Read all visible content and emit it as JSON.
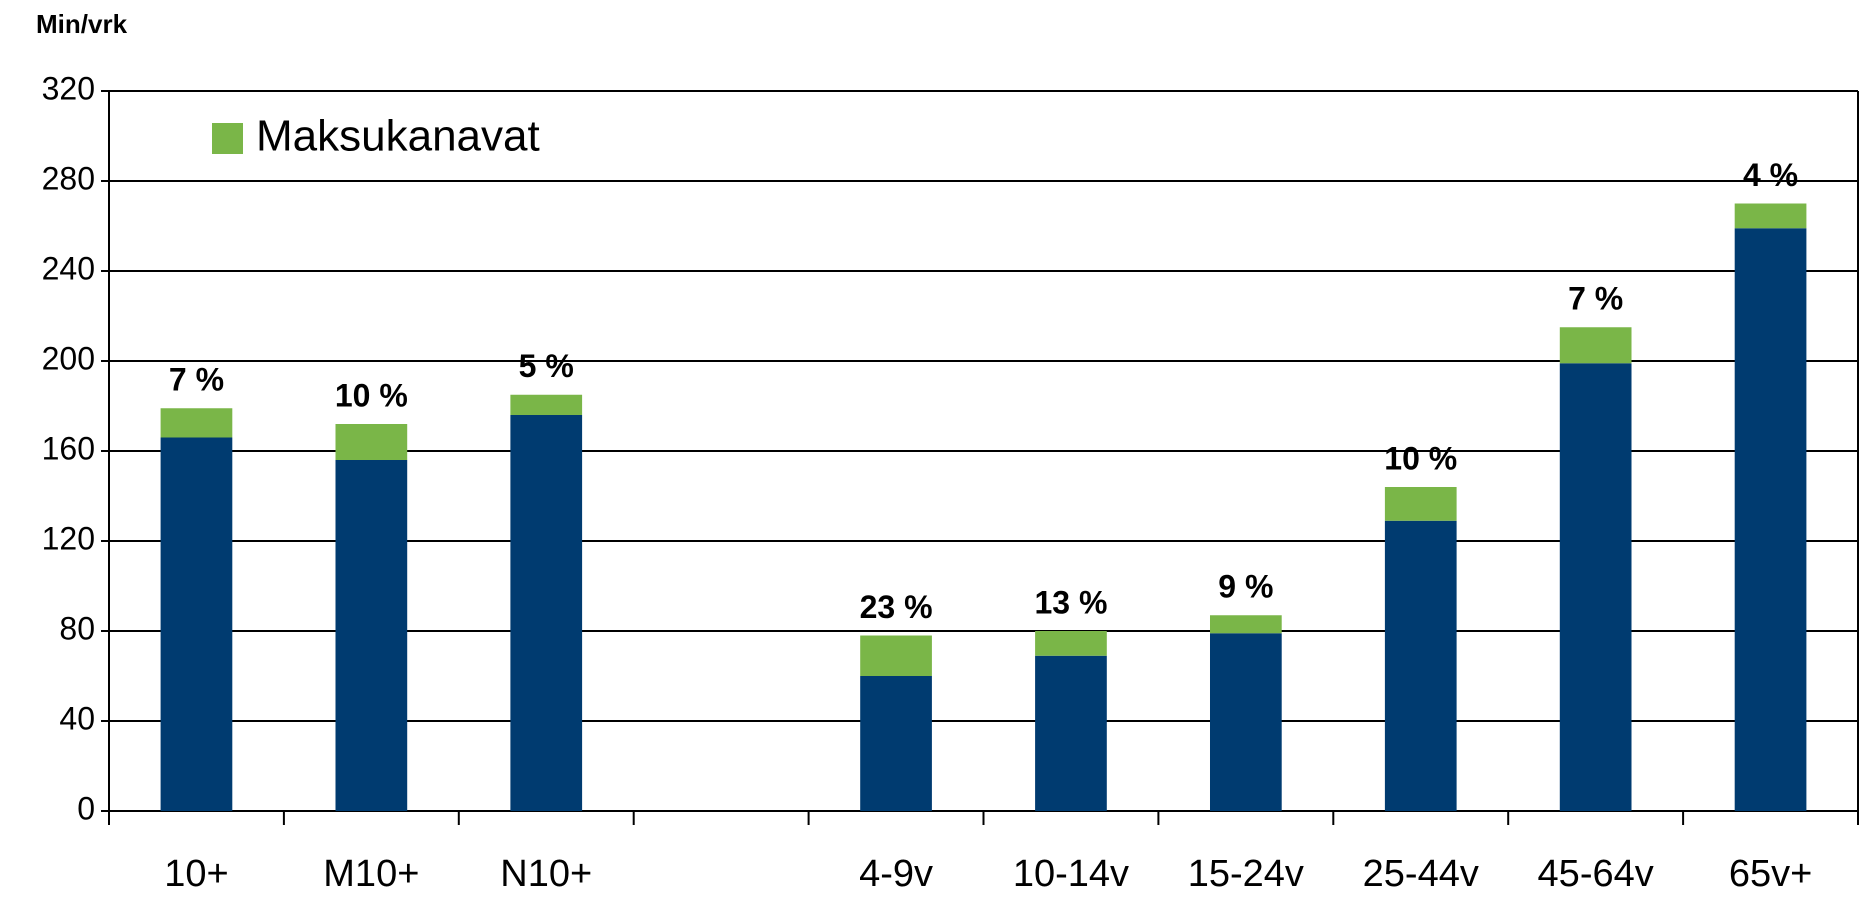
{
  "chart_data": {
    "type": "stacked-bar",
    "y_axis_label": "Min/vrk",
    "categories": [
      "10+",
      "M10+",
      "N10+",
      null,
      "4-9v",
      "10-14v",
      "15-24v",
      "25-44v",
      "45-64v",
      "65v+"
    ],
    "series": [
      {
        "color": "#003b70",
        "values": [
          166,
          156,
          176,
          null,
          60,
          69,
          79,
          129,
          199,
          259
        ]
      },
      {
        "name": "Maksukanavat",
        "color": "#7ab648",
        "values": [
          13,
          16,
          9,
          null,
          18,
          11,
          8,
          15,
          16,
          11
        ]
      }
    ],
    "annotations": [
      "7 %",
      "10 %",
      "5 %",
      null,
      "23 %",
      "13 %",
      "9 %",
      "10 %",
      "7 %",
      "4 %"
    ],
    "ylim": [
      0,
      320
    ],
    "yticks": [
      0,
      40,
      80,
      120,
      160,
      200,
      240,
      280,
      320
    ],
    "grid": true,
    "legend": "top-left"
  }
}
